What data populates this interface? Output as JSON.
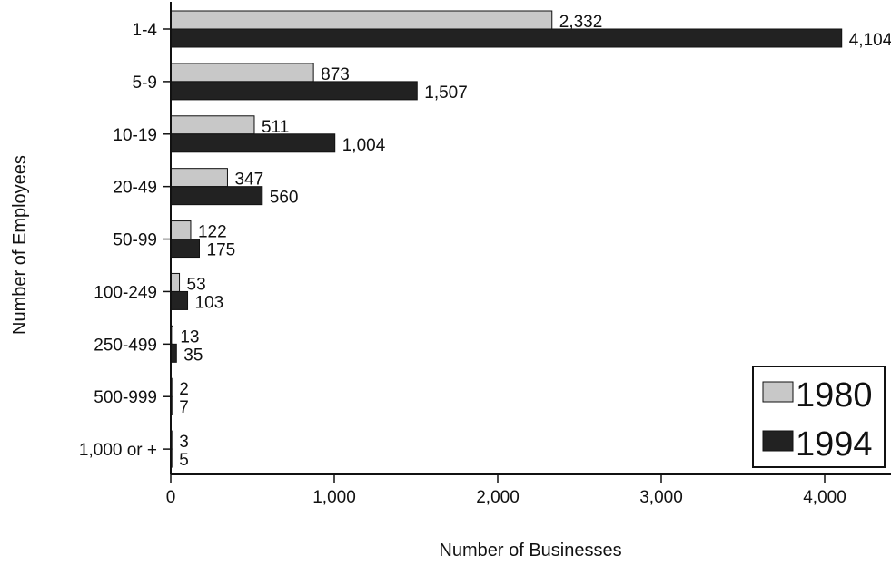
{
  "chart_data": {
    "type": "bar",
    "orientation": "horizontal",
    "ylabel": "Number of Employees",
    "xlabel": "Number of Businesses",
    "categories": [
      "1-4",
      "5-9",
      "10-19",
      "20-49",
      "50-99",
      "100-249",
      "250-499",
      "500-999",
      "1,000 or +"
    ],
    "series": [
      {
        "name": "1980",
        "color": "#c8c8c8",
        "values": [
          2332,
          873,
          511,
          347,
          122,
          53,
          13,
          2,
          3
        ],
        "labels": [
          "2,332",
          "873",
          "511",
          "347",
          "122",
          "53",
          "13",
          "2",
          "3"
        ]
      },
      {
        "name": "1994",
        "color": "#222222",
        "values": [
          4104,
          1507,
          1004,
          560,
          175,
          103,
          35,
          7,
          5
        ],
        "labels": [
          "4,104",
          "1,507",
          "1,004",
          "560",
          "175",
          "103",
          "35",
          "7",
          "5"
        ]
      }
    ],
    "xlim": [
      0,
      4500
    ],
    "xticks": [
      0,
      1000,
      2000,
      3000,
      4000
    ],
    "xtick_labels": [
      "0",
      "1,000",
      "2,000",
      "3,000",
      "4,000"
    ],
    "grid": false,
    "legend_position": "bottom-right"
  }
}
